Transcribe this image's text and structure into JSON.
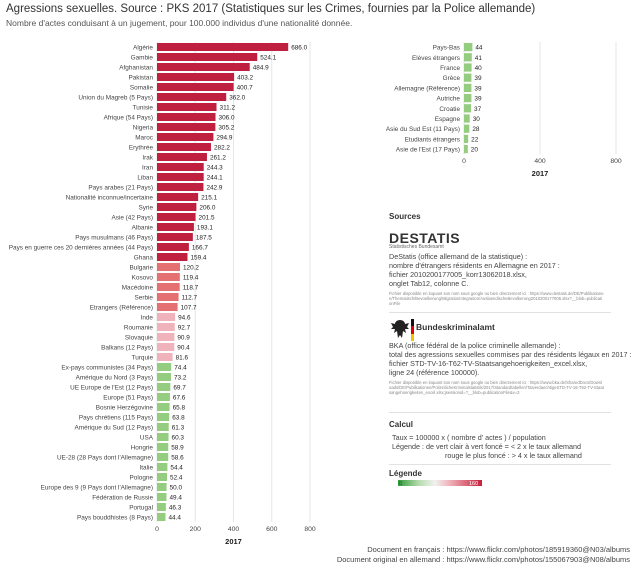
{
  "header": {
    "title": "Agressions sexuelles. Source : PKS 2017 (Statistiques sur les Crimes, fournies par la Police allemande)",
    "subtitle": "Nombre d'actes conduisant à un jugement, pour 100.000 individus d'une nationalité donnée."
  },
  "colors": {
    "red": "#c0203f",
    "salmon": "#e57072",
    "pink": "#f1b3bb",
    "green": "#94cc80",
    "text": "#333333"
  },
  "chart_data": [
    {
      "type": "bar",
      "orientation": "horizontal",
      "xlabel": "2017",
      "xlim": [
        0,
        800
      ],
      "xticks": [
        0,
        200,
        400,
        600,
        800
      ],
      "grid": true,
      "categories": [
        "Algérie",
        "Gambie",
        "Afghanistan",
        "Pakistan",
        "Somalie",
        "Union du Magreb (5 Pays)",
        "Tunisie",
        "Afrique (54 Pays)",
        "Nigeria",
        "Maroc",
        "Erythrée",
        "Irak",
        "Iran",
        "Liban",
        "Pays arabes (21 Pays)",
        "Nationalité inconnue/incertaine",
        "Syrie",
        "Asie (42 Pays)",
        "Albanie",
        "Pays musulmans (46 Pays)",
        "Pays en guerre ces 20 dernières années (44 Pays)",
        "Ghana",
        "Bulgarie",
        "Kosovo",
        "Macédoine",
        "Serbie",
        "Etrangers (Référence)",
        "Inde",
        "Roumanie",
        "Slovaquie",
        "Balkans (12 Pays)",
        "Turquie",
        "Ex-pays communistes (34 Pays)",
        "Amérique du Nord (3 Pays)",
        "UE Europe de l'Est (12 Pays)",
        "Europe (51 Pays)",
        "Bosnie Herzégovine",
        "Pays chrétiens (115 Pays)",
        "Amérique du Sud (12 Pays)",
        "USA",
        "Hongrie",
        "UE-28 (28 Pays dont l'Allemagne)",
        "Italie",
        "Pologne",
        "Europe des 9 (9 Pays dont l'Allemagne)",
        "Fédération de Russie",
        "Portugal",
        "Pays bouddhistes (8 Pays)"
      ],
      "values": [
        686.0,
        524.1,
        484.9,
        403.2,
        400.7,
        362.0,
        311.2,
        306.0,
        305.2,
        294.9,
        282.2,
        261.2,
        244.3,
        244.1,
        242.9,
        215.1,
        206.0,
        201.5,
        193.1,
        187.5,
        166.7,
        159.4,
        120.2,
        119.4,
        118.7,
        112.7,
        107.7,
        94.6,
        92.7,
        90.9,
        90.4,
        81.6,
        74.4,
        73.2,
        69.7,
        67.6,
        65.8,
        63.8,
        61.3,
        60.3,
        58.9,
        58.6,
        54.4,
        52.4,
        50.0,
        49.4,
        46.3,
        44.4
      ],
      "value_labels": [
        "686.0",
        "524.1",
        "484.9",
        "403.2",
        "400.7",
        "362.0",
        "311.2",
        "306.0",
        "305.2",
        "294.9",
        "282.2",
        "261.2",
        "244.3",
        "244.1",
        "242.9",
        "215.1",
        "206.0",
        "201.5",
        "193.1",
        "187.5",
        "166.7",
        "159.4",
        "120.2",
        "119.4",
        "118.7",
        "112.7",
        "107.7",
        "94.6",
        "92.7",
        "90.9",
        "90.4",
        "81.6",
        "74.4",
        "73.2",
        "69.7",
        "67.6",
        "65.8",
        "63.8",
        "61.3",
        "60.3",
        "58.9",
        "58.6",
        "54.4",
        "52.4",
        "50.0",
        "49.4",
        "46.3",
        "44.4"
      ]
    },
    {
      "type": "bar",
      "orientation": "horizontal",
      "xlabel": "2017",
      "xlim": [
        0,
        800
      ],
      "xticks": [
        0,
        400,
        800
      ],
      "grid": true,
      "categories": [
        "Pays-Bas",
        "Elèves étrangers",
        "France",
        "Grèce",
        "Allemagne (Référence)",
        "Autriche",
        "Croatie",
        "Espagne",
        "Asie du Sud Est (11 Pays)",
        "Etudiants étrangers",
        "Asie de l'Est (17 Pays)"
      ],
      "values": [
        44,
        41,
        40,
        39,
        39,
        39,
        37,
        30,
        28,
        22,
        20
      ],
      "value_labels": [
        "44",
        "41",
        "40",
        "39",
        "39",
        "39",
        "37",
        "30",
        "28",
        "22",
        "20"
      ]
    }
  ],
  "sources": {
    "heading": "Sources",
    "destatis_logo": "DESTATIS",
    "destatis_logo_sub": "Statistisches Bundesamt",
    "destatis_lines": [
      "DeStatis (office allemand de la statistique) :",
      "nombre d'étrangers résidents en Allemagne en 2017 :",
      "fichier 2010200177005_korr13062018.xlsx,",
      "onglet Tab12, colonne C."
    ],
    "destatis_note": "Fichier disponible en loquant son nom sous google ou bien directement ici : https://www.destatis.de/DE/Publikationen/Thematisch/Bevoelkerung/MigrationIntegration/AuslaendischeBevolkerung2010200177005.xlsx?__blob=publicationFile",
    "bka_name": "Bundeskriminalamt",
    "bka_lines": [
      "BKA (office fédéral de la police criminelle allemande) :",
      "total des agressions sexuelles commises par des résidents légaux en 2017 :",
      "fichier STD-TV-16-T62-TV-Staatsangehoerigkeiten_excel.xlsx,",
      "ligne 24 (référence 100000)."
    ],
    "bka_note": "Fichier disponible en loquant son nom sous google ou bien directement ici : https://www.bka.de/SharedDocs/Downloads/DE/Publikationen/PolizeilicheKriminalstatistik/2017/Standardtabellen/TatverdaechtigeSTD-TV-16-T62-TV-Staatsangehoerigkeiten_excel.xlsx;jsessionid=?__blob=publicationFile&v=3"
  },
  "calcul": {
    "heading": "Calcul",
    "lines": [
      "Taux = 100000 x ( nombre d' actes ) / population",
      "Légende : de vert clair à vert foncé = < 2 x le taux allemand",
      "rouge le plus foncé : > 4 x le taux allemand"
    ]
  },
  "legend": {
    "heading": "Légende",
    "min_label": "0",
    "max_label": "160"
  },
  "footer": {
    "line1": "Document en français : https://www.flickr.com/photos/185919360@N03/albums",
    "line2": "Document original en allemand : https://www.flickr.com/photos/155067903@N08/albums"
  }
}
